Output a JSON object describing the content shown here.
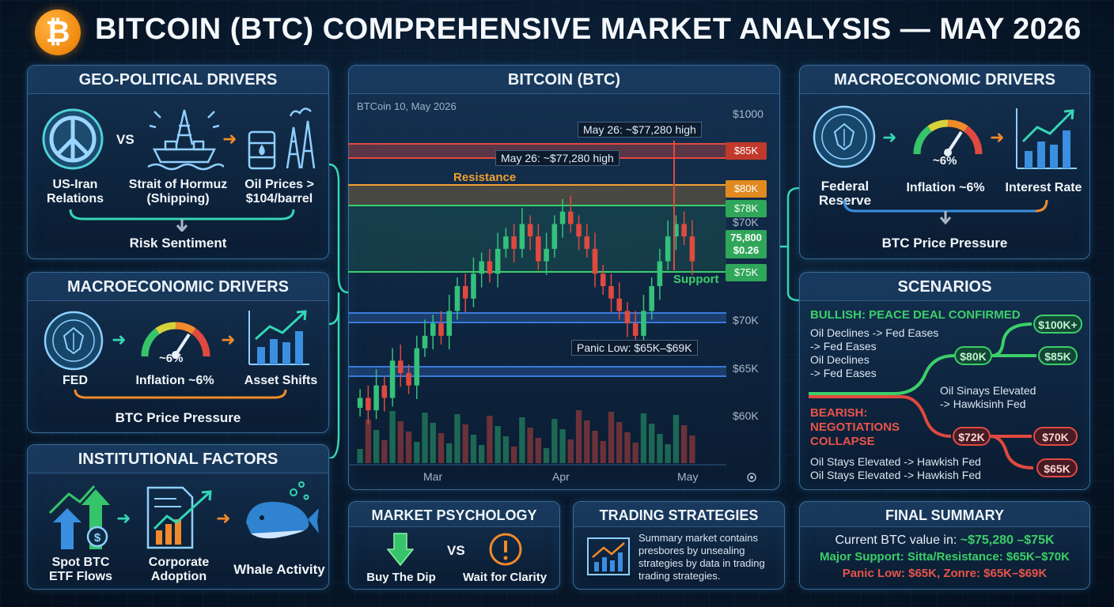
{
  "header": {
    "btc_symbol": "₿",
    "title": "BITCOIN (BTC) COMPREHENSIVE MARKET ANALYSIS — MAY 2026"
  },
  "geo": {
    "title": "GEO-POLITICAL DRIVERS",
    "vs": "VS",
    "item1": "US-Iran\nRelations",
    "item1_a": "US-Iran",
    "item1_b": "Relations",
    "item2_a": "Strait of Hormuz",
    "item2_b": "(Shipping)",
    "item3_a": "Oil Prices >",
    "item3_b": "$104/barrel",
    "footer": "Risk Sentiment"
  },
  "macro_left": {
    "title": "MACROECONOMIC DRIVERS",
    "item1": "FED",
    "item2": "Inflation ~6%",
    "gauge": "~6%",
    "item3": "Asset Shifts",
    "footer": "BTC Price Pressure"
  },
  "institutional": {
    "title": "INSTITUTIONAL FACTORS",
    "item1_a": "Spot BTC",
    "item1_b": "ETF Flows",
    "item2_a": "Corporate",
    "item2_b": "Adoption",
    "item3": "Whale Activity"
  },
  "chart": {
    "title": "BITCOIN (BTC)",
    "subtitle": "BTCoin 10, May 2026",
    "annotation_high_top": "May 26: ~$77,280 high",
    "annotation_high_mid": "May 26: ~$77,280 high",
    "resistance_label": "Resistance",
    "support_label": "Support",
    "panic_label": "Panic Low: $65K–$69K",
    "x_labels": [
      "Mar",
      "Apr",
      "May"
    ],
    "y_labels": [
      "$1000",
      "$70K",
      "$70K",
      "$65K",
      "$60K"
    ],
    "tags": {
      "t85": "$85K",
      "t80": "$80K",
      "t78": "$78K",
      "price": "75,800",
      "change": "$0.26",
      "t75": "$75K"
    },
    "colors": {
      "up": "#34c17a",
      "down": "#e0493f",
      "resistance": "#f0a030",
      "support": "#3ccf6a"
    }
  },
  "chart_data": {
    "type": "bar",
    "title": "BITCOIN (BTC)",
    "series_candles_close": [
      63,
      62,
      64,
      63,
      66,
      65,
      64,
      67,
      68,
      69,
      68,
      70,
      72,
      71,
      73,
      74,
      73,
      75,
      76,
      75,
      77,
      76,
      74,
      75,
      77,
      78,
      77,
      76,
      75,
      73,
      72,
      71,
      70,
      69,
      68,
      70,
      72,
      74,
      76,
      77,
      76,
      74
    ],
    "ylim": [
      58,
      86
    ]
  },
  "macro_right": {
    "title": "MACROECONOMIC DRIVERS",
    "item1_a": "Federal",
    "item1_b": "Reserve",
    "gauge": "~6%",
    "item2": "Inflation ~6%",
    "item3": "Interest Rate",
    "footer": "BTC Price Pressure"
  },
  "scenarios": {
    "title": "SCENARIOS",
    "bull_title": "BULLISH: PEACE DEAL CONFIRMED",
    "bull_lines": [
      "Oil Declines -> Fed Eases",
      "-> Fed Eases",
      "Oil Declines",
      "-> Fed Eases"
    ],
    "bull_mid_note_a": "Oil Sinays Elevated",
    "bull_mid_note_b": "-> Hawkisinh Fed",
    "bear_title_a": "BEARISH:",
    "bear_title_b": "NEGOTIATIONS",
    "bear_title_c": "COLLAPSE",
    "bear_lines": [
      "Oil Stays Elevated -> Hawkish Fed",
      "Oil Stays Elevated -> Hawkish Fed"
    ],
    "p80": "$80K",
    "p100": "$100K+",
    "p85": "$85K",
    "p72": "$72K",
    "p70": "$70K",
    "p65": "$65K"
  },
  "psychology": {
    "title": "MARKET PSYCHOLOGY",
    "left": "Buy The Dip",
    "vs": "VS",
    "right": "Wait for Clarity"
  },
  "strategies": {
    "title": "TRADING STRATEGIES",
    "body_1": "Summary market contains",
    "body_2": "presbores by unsealing",
    "body_3": "strategies by data in trading",
    "body_4": "trading strategies."
  },
  "summary": {
    "title": "FINAL SUMMARY",
    "line1_a": "Current BTC value in: ",
    "line1_b": "~$75,280 –$75K",
    "line2": "Major Support: Sitta/Resistance: $65K–$70K",
    "line3": "Panic Low: $65K, Zonre: $65K–$69K"
  }
}
